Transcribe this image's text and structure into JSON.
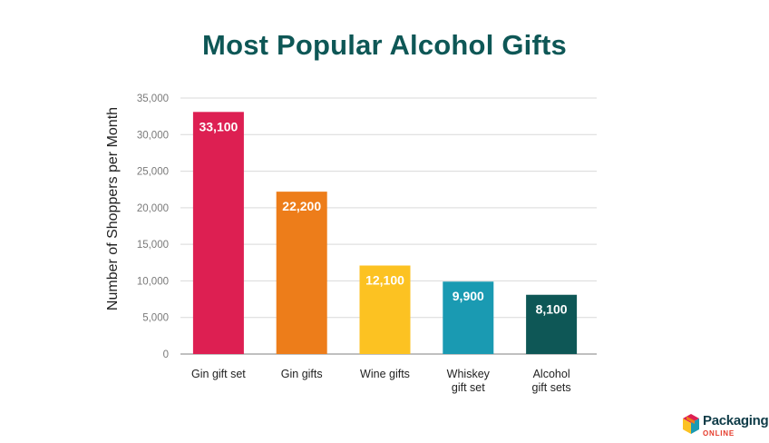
{
  "chart_data": {
    "type": "bar",
    "title": "Most Popular Alcohol Gifts",
    "ylabel": "Number of Shoppers per Month",
    "xlabel": "",
    "ylim": [
      0,
      35000
    ],
    "yticks": [
      0,
      5000,
      10000,
      15000,
      20000,
      25000,
      30000,
      35000
    ],
    "ytick_labels": [
      "0",
      "5,000",
      "10,000",
      "15,000",
      "20,000",
      "25,000",
      "30,000",
      "35,000"
    ],
    "grid": true,
    "categories": [
      [
        "Gin gift set"
      ],
      [
        "Gin gifts"
      ],
      [
        "Wine gifts"
      ],
      [
        "Whiskey",
        "gift set"
      ],
      [
        "Alcohol",
        "gift sets"
      ]
    ],
    "values": [
      33100,
      22200,
      12100,
      9900,
      8100
    ],
    "data_labels": [
      "33,100",
      "22,200",
      "12,100",
      "9,900",
      "8,100"
    ],
    "colors": [
      "#dd1f52",
      "#ed7d1a",
      "#fcc222",
      "#1a9ab2",
      "#0e5756"
    ]
  },
  "brand": {
    "name": "Packaging",
    "sub": "ONLINE",
    "logo_icon": "box-logo-icon"
  }
}
